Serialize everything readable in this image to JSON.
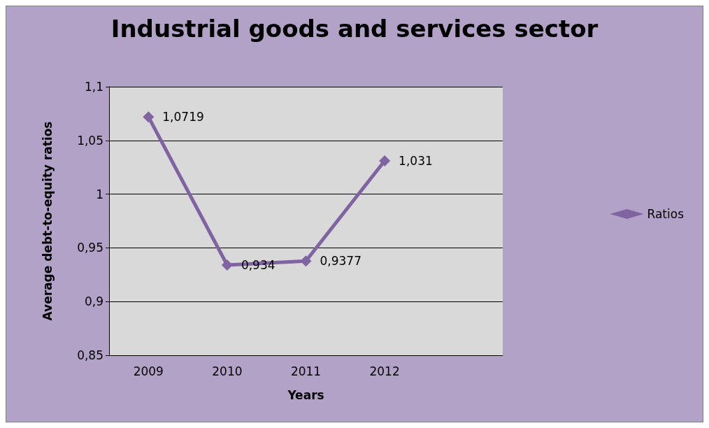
{
  "chart_data": {
    "type": "line",
    "title": "Industrial goods and services sector",
    "xlabel": "Years",
    "ylabel": "Average debt-to-equity ratios",
    "categories": [
      "2009",
      "2010",
      "2011",
      "2012",
      null
    ],
    "series": [
      {
        "name": "Ratios",
        "color": "#8064a2",
        "values": [
          1.0719,
          0.934,
          0.9377,
          1.031,
          null
        ],
        "value_labels": [
          "1,0719",
          "0,934",
          "0,9377",
          "1,031",
          null
        ]
      }
    ],
    "ylim": [
      0.85,
      1.1
    ],
    "yticks": [
      {
        "value": 0.85,
        "label": "0,85"
      },
      {
        "value": 0.9,
        "label": "0,9"
      },
      {
        "value": 0.95,
        "label": "0,95"
      },
      {
        "value": 1,
        "label": "1"
      },
      {
        "value": 1.05,
        "label": "1,05"
      },
      {
        "value": 1.1,
        "label": "1,1"
      }
    ],
    "grid": "y",
    "legend": "right",
    "marker": "diamond",
    "line_style": "solid"
  }
}
